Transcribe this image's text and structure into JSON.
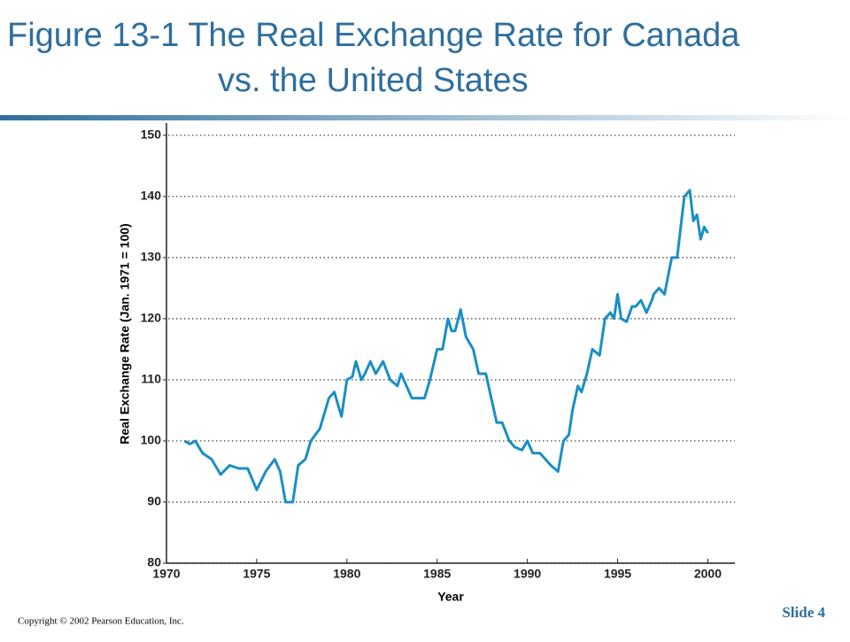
{
  "slide": {
    "title_lines": [
      "Figure 13-1  The Real Exchange Rate for Canada",
      "vs. the United States"
    ],
    "copyright": "Copyright © 2002 Pearson Education, Inc.",
    "slide_number": "Slide 4"
  },
  "chart_data": {
    "type": "line",
    "xlabel": "Year",
    "ylabel": "Real Exchange Rate (Jan. 1971 = 100)",
    "xlim": [
      1970,
      2001.5
    ],
    "ylim": [
      80,
      152
    ],
    "xticks": [
      1970,
      1975,
      1980,
      1985,
      1990,
      1995,
      2000
    ],
    "yticks": [
      80,
      90,
      100,
      110,
      120,
      130,
      140,
      150
    ],
    "grid": true,
    "series": [
      {
        "name": "Canada vs. United States",
        "color": "#1a8fc4",
        "x": [
          1971.0,
          1971.3,
          1971.6,
          1972,
          1972.5,
          1973,
          1973.5,
          1974,
          1974.5,
          1975,
          1975.5,
          1976,
          1976.3,
          1976.6,
          1977,
          1977.3,
          1977.7,
          1978,
          1978.5,
          1979,
          1979.3,
          1979.7,
          1980,
          1980.3,
          1980.5,
          1980.8,
          1981,
          1981.3,
          1981.6,
          1982,
          1982.4,
          1982.8,
          1983,
          1983.3,
          1983.6,
          1984,
          1984.3,
          1984.6,
          1985,
          1985.3,
          1985.6,
          1985.8,
          1986,
          1986.3,
          1986.6,
          1987,
          1987.3,
          1987.7,
          1988,
          1988.3,
          1988.6,
          1989,
          1989.3,
          1989.7,
          1990,
          1990.3,
          1990.7,
          1991,
          1991.3,
          1991.7,
          1992,
          1992.3,
          1992.5,
          1992.8,
          1993,
          1993.3,
          1993.6,
          1994,
          1994.3,
          1994.6,
          1994.8,
          1995,
          1995.2,
          1995.5,
          1995.8,
          1996,
          1996.3,
          1996.6,
          1996.9,
          1997,
          1997.3,
          1997.6,
          1998,
          1998.3,
          1998.5,
          1998.7,
          1999,
          1999.2,
          1999.4,
          1999.6,
          1999.8,
          2000
        ],
        "values": [
          100,
          99.5,
          100,
          98,
          97,
          94.5,
          96,
          95.5,
          95.5,
          92,
          95,
          97,
          95,
          90,
          90,
          96,
          97,
          100,
          102,
          107,
          108,
          104,
          110,
          110.5,
          113,
          110,
          111,
          113,
          111,
          113,
          110,
          109,
          111,
          109,
          107,
          107,
          107,
          110,
          115,
          115,
          120,
          118,
          118,
          121.5,
          117,
          115,
          111,
          111,
          107,
          103,
          103,
          100,
          99,
          98.5,
          100,
          98,
          98,
          97,
          96,
          95,
          100,
          101,
          105,
          109,
          108,
          111,
          115,
          114,
          120,
          121,
          120,
          124,
          120,
          119.5,
          122,
          122,
          123,
          121,
          123,
          124,
          125,
          124,
          130,
          130,
          135,
          140,
          141,
          136,
          137,
          133,
          135,
          134
        ]
      }
    ]
  }
}
